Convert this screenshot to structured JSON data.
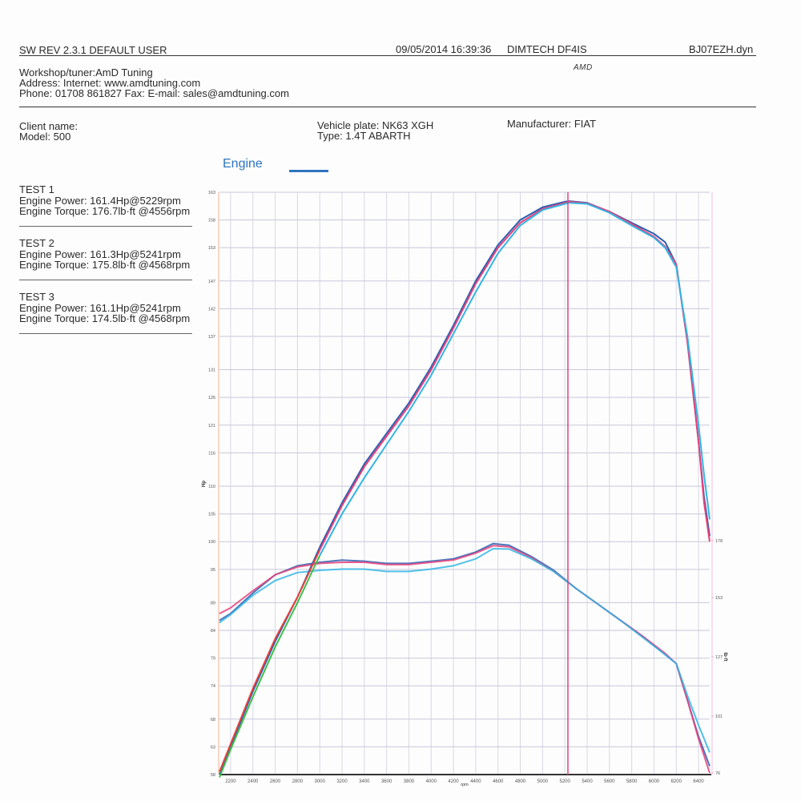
{
  "header": {
    "software": "SW REV 2.3.1   DEFAULT USER",
    "datetime": "09/05/2014 16:39:36",
    "dyno": "DIMTECH DF4IS",
    "file": "BJ07EZH.dyn",
    "logo": "AMD"
  },
  "workshop": {
    "line1": "Workshop/tuner:AmD Tuning",
    "line2": "Address:  Internet: www.amdtuning.com",
    "line3": "Phone: 01708 861827 Fax:  E-mail: sales@amdtuning.com"
  },
  "vehicle": {
    "client": "Client name:",
    "model": "Model: 500",
    "plate": "Vehicle plate: NK63 XGH",
    "type": "Type: 1.4T ABARTH",
    "manufacturer": "Manufacturer: FIAT"
  },
  "legend": {
    "title": "Engine",
    "color": "#2f75c0"
  },
  "tests": [
    {
      "name": "TEST 1",
      "power": "Engine Power: 161.4Hp@5229rpm",
      "torque": "Engine Torque: 176.7lb·ft @4556rpm"
    },
    {
      "name": "TEST 2",
      "power": "Engine Power: 161.3Hp@5241rpm",
      "torque": "Engine Torque: 175.8lb·ft @4568rpm"
    },
    {
      "name": "TEST 3",
      "power": "Engine Power: 161.1Hp@5241rpm",
      "torque": "Engine Torque: 174.5lb·ft @4568rpm"
    }
  ],
  "chart_data": {
    "type": "line",
    "title": "Engine",
    "xlabel": "rpm",
    "ylabel": "Hp",
    "y2label": "lb·ft",
    "xlim": [
      2100,
      6500
    ],
    "ylim": [
      58,
      163
    ],
    "y2lim": [
      76,
      204
    ],
    "grid": true,
    "x_ticks": [
      2200,
      2400,
      2600,
      2800,
      3000,
      3200,
      3400,
      3600,
      3800,
      4000,
      4200,
      4400,
      4600,
      4800,
      5000,
      5200,
      5400,
      5600,
      5800,
      6000,
      6200,
      6400
    ],
    "y_ticks": [
      163,
      158,
      153,
      147,
      142,
      137,
      131,
      126,
      121,
      116,
      110,
      105,
      100,
      95,
      89,
      84,
      79,
      74,
      68,
      63,
      58
    ],
    "y2_ticks": [
      178,
      153,
      127,
      101,
      76
    ],
    "marker_rpm": 5241,
    "marker_color": "#e8407a",
    "colors": {
      "test1": "#2d5fb0",
      "test2": "#e8407a",
      "test3": "#33b5e5",
      "test1_low": "#2d5fb0",
      "test2_low": "#e84040",
      "test3_low": "#3cc04a"
    },
    "power": {
      "x": [
        2100,
        2200,
        2400,
        2600,
        2800,
        3000,
        3200,
        3400,
        3600,
        3800,
        4000,
        4200,
        4400,
        4600,
        4800,
        5000,
        5200,
        5241,
        5400,
        5600,
        5800,
        6000,
        6100,
        6200,
        6300,
        6400,
        6450,
        6500
      ],
      "series": [
        {
          "name": "TEST 1 Power (Hp)",
          "values": [
            58,
            63,
            73,
            82,
            90,
            99,
            107,
            114,
            119.5,
            125,
            131.5,
            139,
            147,
            153.5,
            158,
            160.3,
            161.3,
            161.4,
            161.1,
            159.5,
            157.5,
            155.5,
            154,
            150,
            136,
            118,
            108,
            101
          ]
        },
        {
          "name": "TEST 2 Power (Hp)",
          "values": [
            58.5,
            63.5,
            73.5,
            82.5,
            90,
            98.5,
            106.5,
            113.5,
            119,
            124.5,
            131,
            138.5,
            146.5,
            153,
            157.5,
            160,
            161.1,
            161.3,
            161,
            159.5,
            157.3,
            155,
            153.2,
            150,
            136,
            118,
            107,
            100
          ]
        },
        {
          "name": "TEST 3 Power (Hp)",
          "values": [
            57.5,
            62.5,
            72,
            81,
            89,
            97.5,
            105,
            111.5,
            117.5,
            123.5,
            130,
            137.5,
            145,
            152,
            157,
            159.8,
            160.9,
            161.1,
            160.9,
            159.3,
            157,
            154.8,
            153,
            149.5,
            137,
            121,
            112,
            104
          ]
        }
      ]
    },
    "torque": {
      "x": [
        2100,
        2200,
        2400,
        2600,
        2800,
        3000,
        3200,
        3400,
        3600,
        3800,
        4000,
        4200,
        4400,
        4556,
        4700,
        4900,
        5100,
        5300,
        5500,
        5700,
        5900,
        6100,
        6200,
        6300,
        6400,
        6500
      ],
      "series": [
        {
          "name": "TEST 1 Torque (lb·ft)",
          "values": [
            143,
            146,
            155,
            163,
            167,
            168.5,
            169.5,
            169,
            168,
            168,
            169,
            170,
            173,
            176.7,
            176,
            171,
            165,
            157,
            150,
            143,
            136,
            128,
            124,
            108,
            92,
            79
          ]
        },
        {
          "name": "TEST 2 Torque (lb·ft)",
          "values": [
            146,
            148.5,
            156,
            163,
            166.5,
            168,
            168.5,
            168.5,
            167.5,
            167.5,
            168.5,
            169.5,
            172.5,
            175.8,
            175.3,
            170.5,
            164.5,
            157,
            150,
            143,
            136,
            128.5,
            124,
            108,
            91,
            76
          ]
        },
        {
          "name": "TEST 3 Torque (lb·ft)",
          "values": [
            142,
            145.5,
            154,
            160.5,
            164,
            165,
            165.5,
            165.5,
            164.5,
            164.5,
            165.5,
            167,
            170,
            174.5,
            174.3,
            170,
            164.5,
            157,
            150,
            143,
            135.5,
            128,
            124,
            110,
            97,
            85
          ]
        }
      ]
    }
  }
}
